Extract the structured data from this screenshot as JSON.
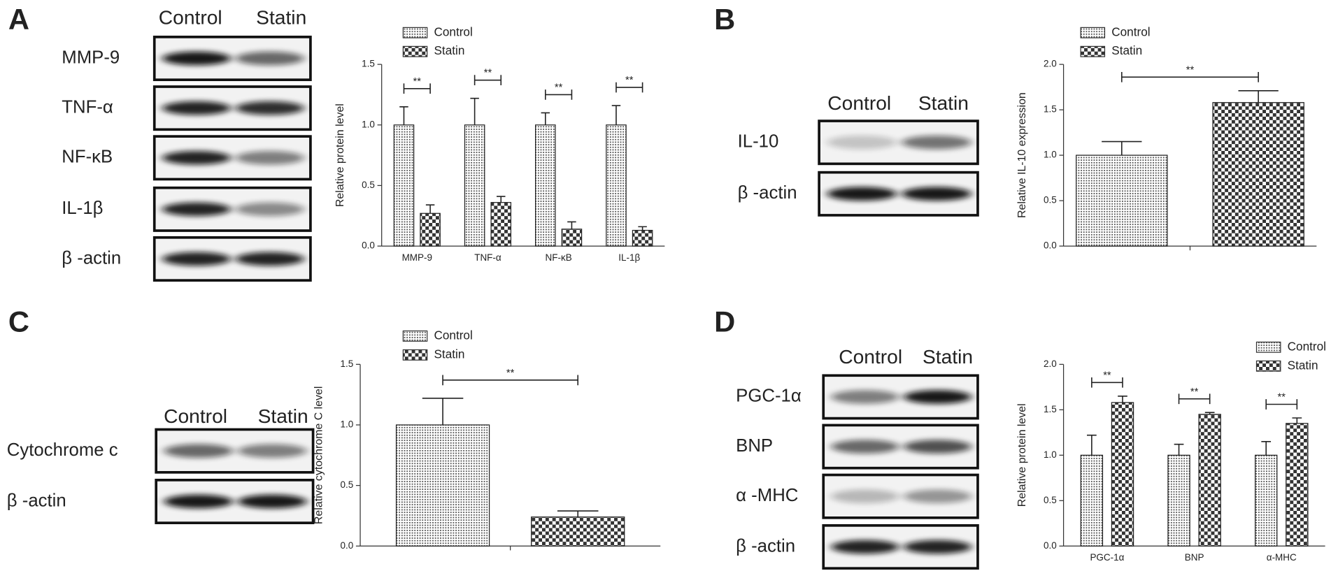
{
  "chart_data": [
    {
      "type": "bar",
      "ylabel": "Relative protein level",
      "categories": [
        "MMP-9",
        "TNF-α",
        "NF-κB",
        "IL-1β"
      ],
      "series": [
        {
          "name": "Control",
          "color": "#555555",
          "values": [
            1.0,
            1.0,
            1.0,
            1.0
          ],
          "errors": [
            0.15,
            0.22,
            0.1,
            0.16
          ]
        },
        {
          "name": "Statin",
          "color": "#333333",
          "values": [
            0.27,
            0.36,
            0.14,
            0.13
          ],
          "errors": [
            0.07,
            0.05,
            0.06,
            0.03
          ]
        }
      ],
      "significance": [
        "**",
        "**",
        "**",
        "**"
      ],
      "ylim": [
        0,
        1.5
      ],
      "yticks": [
        {
          "value": 0,
          "label": "0.0"
        },
        {
          "value": 0.5,
          "label": "0.5"
        },
        {
          "value": 1,
          "label": "1.0"
        },
        {
          "value": 1.5,
          "label": "1.5"
        }
      ]
    },
    {
      "type": "bar",
      "ylabel": "Relative IL-10 expression",
      "categories": [
        null
      ],
      "series": [
        {
          "name": "Control",
          "color": "#555555",
          "values": [
            1.0
          ],
          "errors": [
            0.15
          ]
        },
        {
          "name": "Statin",
          "color": "#333333",
          "values": [
            1.58
          ],
          "errors": [
            0.13
          ]
        }
      ],
      "significance": [
        "**"
      ],
      "ylim": [
        0,
        2
      ],
      "yticks": [
        {
          "value": 0,
          "label": "0.0"
        },
        {
          "value": 0.5,
          "label": "0.5"
        },
        {
          "value": 1,
          "label": "1.0"
        },
        {
          "value": 1.5,
          "label": "1.5"
        },
        {
          "value": 2,
          "label": "2.0"
        }
      ]
    },
    {
      "type": "bar",
      "ylabel": "Relative cytochrome C level",
      "categories": [
        null
      ],
      "series": [
        {
          "name": "Control",
          "color": "#555555",
          "values": [
            1.0
          ],
          "errors": [
            0.22
          ]
        },
        {
          "name": "Statin",
          "color": "#333333",
          "values": [
            0.24
          ],
          "errors": [
            0.05
          ]
        }
      ],
      "significance": [
        "**"
      ],
      "ylim": [
        0,
        1.5
      ],
      "yticks": [
        {
          "value": 0,
          "label": "0.0"
        },
        {
          "value": 0.5,
          "label": "0.5"
        },
        {
          "value": 1,
          "label": "1.0"
        },
        {
          "value": 1.5,
          "label": "1.5"
        }
      ]
    },
    {
      "type": "bar",
      "ylabel": "Relative protein level",
      "categories": [
        "PGC-1α",
        "BNP",
        "α-MHC"
      ],
      "series": [
        {
          "name": "Control",
          "color": "#555555",
          "values": [
            1.0,
            1.0,
            1.0
          ],
          "errors": [
            0.22,
            0.12,
            0.15
          ]
        },
        {
          "name": "Statin",
          "color": "#333333",
          "values": [
            1.58,
            1.45,
            1.35
          ],
          "errors": [
            0.07,
            0.02,
            0.06
          ]
        }
      ],
      "significance": [
        "**",
        "**",
        "**"
      ],
      "ylim": [
        0,
        2
      ],
      "yticks": [
        {
          "value": 0,
          "label": "0.0"
        },
        {
          "value": 0.5,
          "label": "0.5"
        },
        {
          "value": 1,
          "label": "1.0"
        },
        {
          "value": 1.5,
          "label": "1.5"
        },
        {
          "value": 2,
          "label": "2.0"
        }
      ]
    }
  ],
  "blots": [
    {
      "label": "A",
      "columns": [
        "Control",
        "Statin"
      ],
      "rows": [
        "MMP-9",
        "TNF-α",
        "NF-κB",
        "IL-1β",
        "β -actin"
      ]
    },
    {
      "label": "B",
      "columns": [
        "Control",
        "Statin"
      ],
      "rows": [
        "IL-10",
        "β -actin"
      ]
    },
    {
      "label": "C",
      "columns": [
        "Control",
        "Statin"
      ],
      "rows": [
        "Cytochrome c",
        "β -actin"
      ]
    },
    {
      "label": "D",
      "columns": [
        "Control",
        "Statin"
      ],
      "rows": [
        "PGC-1α",
        "BNP",
        "α -MHC",
        "β -actin"
      ]
    }
  ]
}
